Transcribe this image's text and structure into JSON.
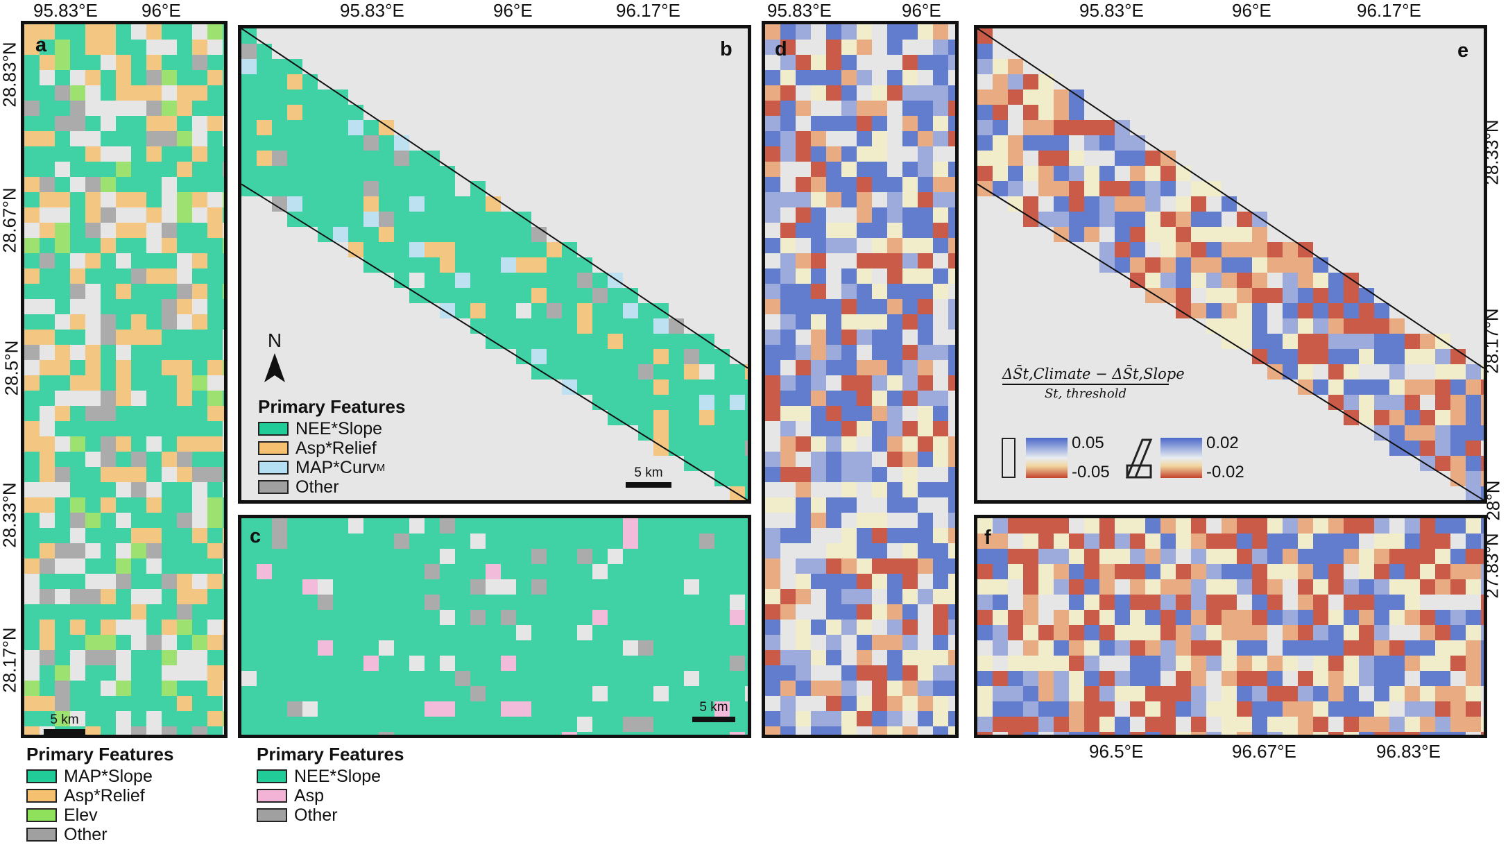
{
  "panels": {
    "a": {
      "label": "a",
      "x_ticks": [
        "95.83°E",
        "96°E"
      ],
      "y_ticks": [
        "28.83°N",
        "28.67°N",
        "28.5°N",
        "28.33°N",
        "28.17°N"
      ],
      "scale": "5 km"
    },
    "b": {
      "label": "b",
      "x_ticks": [
        "95.83°E",
        "96°E",
        "96.17°E"
      ],
      "scale": "5 km",
      "north": "N"
    },
    "c": {
      "label": "c",
      "scale": "5 km"
    },
    "d": {
      "label": "d",
      "x_ticks": [
        "95.83°E",
        "96°E"
      ]
    },
    "e": {
      "label": "e",
      "x_ticks": [
        "95.83°E",
        "96°E",
        "96.17°E"
      ],
      "y_ticks": [
        "28.33°N",
        "28.17°N",
        "28°N"
      ]
    },
    "f": {
      "label": "f",
      "x_ticks": [
        "96.5°E",
        "96.67°E",
        "96.83°E"
      ],
      "y_ticks": [
        "27.83°N"
      ]
    }
  },
  "legends": {
    "a": {
      "title": "Primary Features",
      "items": [
        {
          "label": "MAP*Slope",
          "color": "#22cc99"
        },
        {
          "label": "Asp*Relief",
          "color": "#f5c170"
        },
        {
          "label": "Elev",
          "color": "#8fe05a"
        },
        {
          "label": "Other",
          "color": "#a0a0a0"
        }
      ]
    },
    "b": {
      "title": "Primary Features",
      "items": [
        {
          "label": "NEE*Slope",
          "color": "#22cc99"
        },
        {
          "label": "Asp*Relief",
          "color": "#f5c170"
        },
        {
          "label": "MAP*Curv",
          "sub": "M",
          "color": "#b5dff2"
        },
        {
          "label": "Other",
          "color": "#a0a0a0"
        }
      ]
    },
    "c": {
      "title": "Primary Features",
      "items": [
        {
          "label": "NEE*Slope",
          "color": "#22cc99"
        },
        {
          "label": "Asp",
          "color": "#f2b3d6"
        },
        {
          "label": "Other",
          "color": "#a0a0a0"
        }
      ]
    }
  },
  "colorbar": {
    "formula_num": "ΔS̄t,Climate − ΔS̄t,Slope",
    "formula_den": "St, threshold",
    "rect_max": "0.05",
    "rect_min": "-0.05",
    "para_max": "0.02",
    "para_min": "-0.02"
  }
}
